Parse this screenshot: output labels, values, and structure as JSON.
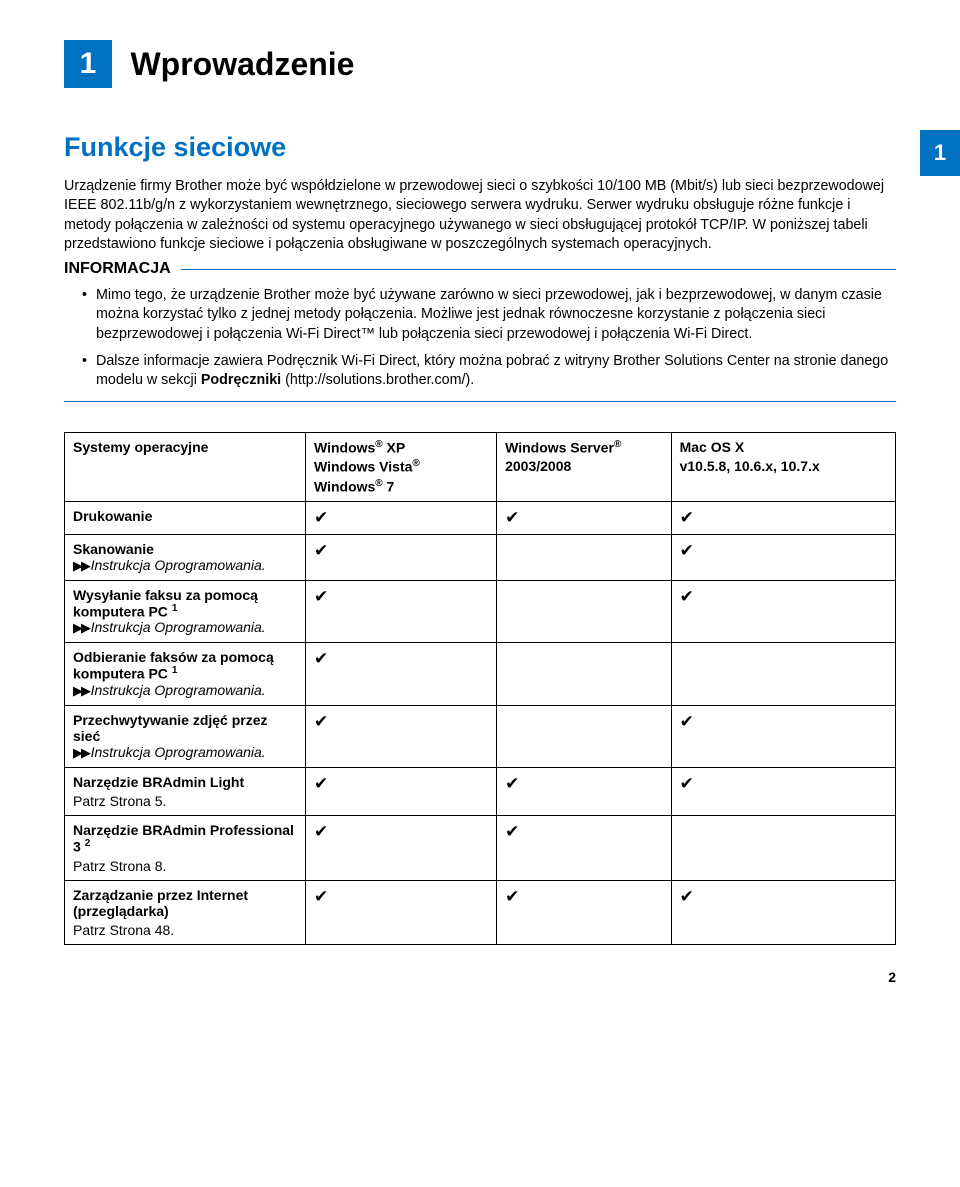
{
  "chapter": {
    "number": "1",
    "title": "Wprowadzenie",
    "side_tab": "1"
  },
  "section": {
    "title": "Funkcje sieciowe"
  },
  "intro_text": "Urządzenie firmy Brother może być współdzielone w przewodowej sieci o szybkości 10/100 MB (Mbit/s) lub sieci bezprzewodowej IEEE 802.11b/g/n z wykorzystaniem wewnętrznego, sieciowego serwera wydruku. Serwer wydruku obsługuje różne funkcje i metody połączenia w zależności od systemu operacyjnego używanego w sieci obsługującej protokół TCP/IP. W poniższej tabeli przedstawiono funkcje sieciowe i połączenia obsługiwane w poszczególnych systemach operacyjnych.",
  "info": {
    "heading": "INFORMACJA",
    "items": [
      "Mimo tego, że urządzenie Brother może być używane zarówno w sieci przewodowej, jak i bezprzewodowej, w danym czasie można korzystać tylko z jednej metody połączenia. Możliwe jest jednak równoczesne korzystanie z połączenia sieci bezprzewodowej i połączenia Wi-Fi Direct™ lub połączenia sieci przewodowej i połączenia Wi-Fi Direct.",
      "Dalsze informacje zawiera Podręcznik Wi-Fi Direct, który można pobrać z witryny Brother Solutions Center na stronie danego modelu w sekcji Podręczniki (http://solutions.brother.com/)."
    ],
    "bold_word": "Podręczniki"
  },
  "table": {
    "header": {
      "os_label": "Systemy operacyjne",
      "col1": {
        "l1": "Windows",
        "l1r": "®",
        "l1s": " XP",
        "l2": "Windows Vista",
        "l2r": "®",
        "l3": "Windows",
        "l3r": "®",
        "l3s": " 7"
      },
      "col2": {
        "l1": "Windows Server",
        "l1r": "®",
        "l2": "2003/2008"
      },
      "col3": {
        "l1": "Mac OS X",
        "l2": "v10.5.8, 10.6.x, 10.7.x"
      }
    },
    "ref_text": "Instrukcja Oprogramowania.",
    "rows": [
      {
        "label": "Drukowanie",
        "c": [
          "✔",
          "✔",
          "✔"
        ]
      },
      {
        "label": "Skanowanie",
        "ref": true,
        "c": [
          "✔",
          "",
          "✔"
        ]
      },
      {
        "label_html": "Wysyłanie faksu za pomocą komputera PC ",
        "sup": "1",
        "ref": true,
        "c": [
          "✔",
          "",
          "✔"
        ]
      },
      {
        "label_html": "Odbieranie faksów za pomocą komputera PC ",
        "sup": "1",
        "ref": true,
        "c": [
          "✔",
          "",
          ""
        ]
      },
      {
        "label": "Przechwytywanie zdjęć przez sieć",
        "ref": true,
        "c": [
          "✔",
          "",
          "✔"
        ]
      },
      {
        "label": "Narzędzie BRAdmin Light",
        "subref": "Patrz Strona 5.",
        "c": [
          "✔",
          "✔",
          "✔"
        ]
      },
      {
        "label_html": "Narzędzie BRAdmin Professional 3 ",
        "sup": "2",
        "subref": "Patrz Strona 8.",
        "c": [
          "✔",
          "✔",
          ""
        ]
      },
      {
        "label": "Zarządzanie przez Internet (przeglądarka)",
        "subref": "Patrz Strona 48.",
        "c": [
          "✔",
          "✔",
          "✔"
        ]
      }
    ]
  },
  "page_number": "2"
}
